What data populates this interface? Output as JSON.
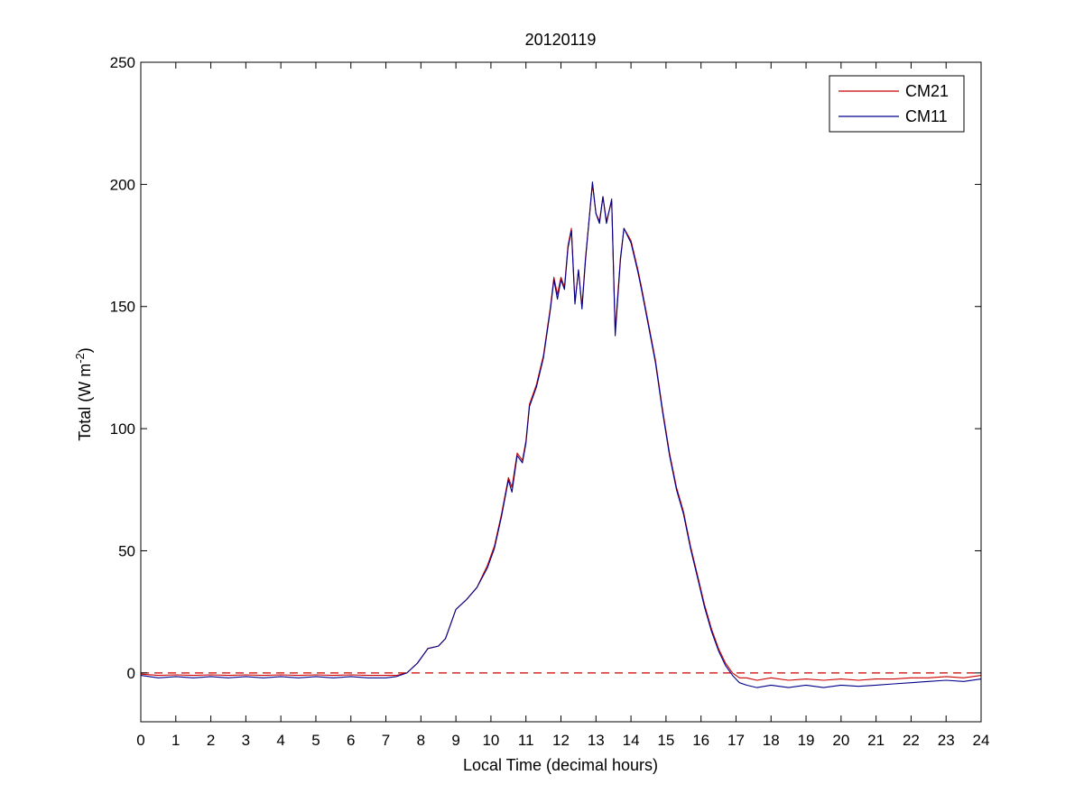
{
  "chart_data": {
    "type": "line",
    "title": "20120119",
    "xlabel": "Local Time (decimal hours)",
    "ylabel": {
      "prefix": "Total (W m",
      "superscript": "-2",
      "suffix": ")"
    },
    "xlim": [
      0,
      24
    ],
    "ylim": [
      -20,
      250
    ],
    "xticks": [
      "0",
      "1",
      "2",
      "3",
      "4",
      "5",
      "6",
      "7",
      "8",
      "9",
      "10",
      "11",
      "12",
      "13",
      "14",
      "15",
      "16",
      "17",
      "18",
      "19",
      "20",
      "21",
      "22",
      "23",
      "24"
    ],
    "yticks": [
      "0",
      "50",
      "100",
      "150",
      "200",
      "250"
    ],
    "grid": false,
    "legend_position": "top-right",
    "reference_line": {
      "y": 0,
      "style": "dashed",
      "color": "#cc0000"
    },
    "series": [
      {
        "name": "CM21",
        "color": "#cc0000",
        "points": [
          [
            0,
            -0.5
          ],
          [
            0.5,
            -1
          ],
          [
            1,
            -0.8
          ],
          [
            1.5,
            -1
          ],
          [
            2,
            -0.8
          ],
          [
            2.5,
            -1
          ],
          [
            3,
            -0.8
          ],
          [
            3.5,
            -1
          ],
          [
            4,
            -0.8
          ],
          [
            4.5,
            -1
          ],
          [
            5,
            -0.8
          ],
          [
            5.5,
            -1
          ],
          [
            6,
            -0.8
          ],
          [
            6.5,
            -1
          ],
          [
            7,
            -1
          ],
          [
            7.3,
            -1
          ],
          [
            7.6,
            0
          ],
          [
            7.9,
            4
          ],
          [
            8.2,
            10
          ],
          [
            8.5,
            11
          ],
          [
            8.7,
            14
          ],
          [
            9,
            26
          ],
          [
            9.3,
            30
          ],
          [
            9.6,
            35
          ],
          [
            9.9,
            44
          ],
          [
            10.1,
            52
          ],
          [
            10.3,
            65
          ],
          [
            10.5,
            80
          ],
          [
            10.6,
            76
          ],
          [
            10.75,
            90
          ],
          [
            10.9,
            87
          ],
          [
            11,
            95
          ],
          [
            11.1,
            110
          ],
          [
            11.3,
            118
          ],
          [
            11.5,
            130
          ],
          [
            11.7,
            150
          ],
          [
            11.8,
            162
          ],
          [
            11.9,
            155
          ],
          [
            12.0,
            162
          ],
          [
            12.1,
            158
          ],
          [
            12.2,
            175
          ],
          [
            12.3,
            182
          ],
          [
            12.4,
            152
          ],
          [
            12.5,
            165
          ],
          [
            12.6,
            150
          ],
          [
            12.7,
            170
          ],
          [
            12.9,
            200
          ],
          [
            13.0,
            188
          ],
          [
            13.1,
            185
          ],
          [
            13.2,
            195
          ],
          [
            13.3,
            185
          ],
          [
            13.45,
            193
          ],
          [
            13.55,
            140
          ],
          [
            13.7,
            170
          ],
          [
            13.8,
            182
          ],
          [
            14.0,
            177
          ],
          [
            14.2,
            165
          ],
          [
            14.3,
            158
          ],
          [
            14.5,
            143
          ],
          [
            14.7,
            128
          ],
          [
            14.9,
            108
          ],
          [
            15.1,
            90
          ],
          [
            15.3,
            76
          ],
          [
            15.5,
            66
          ],
          [
            15.7,
            52
          ],
          [
            15.9,
            40
          ],
          [
            16.1,
            28
          ],
          [
            16.3,
            18
          ],
          [
            16.5,
            10
          ],
          [
            16.7,
            4
          ],
          [
            16.9,
            0
          ],
          [
            17.1,
            -2
          ],
          [
            17.3,
            -2
          ],
          [
            17.6,
            -3
          ],
          [
            18,
            -2
          ],
          [
            18.5,
            -3
          ],
          [
            19,
            -2.5
          ],
          [
            19.5,
            -3
          ],
          [
            20,
            -2.5
          ],
          [
            20.5,
            -3
          ],
          [
            21,
            -2.5
          ],
          [
            21.5,
            -2.5
          ],
          [
            22,
            -2
          ],
          [
            22.5,
            -2
          ],
          [
            23,
            -1.5
          ],
          [
            23.5,
            -2
          ],
          [
            24,
            -1
          ]
        ]
      },
      {
        "name": "CM11",
        "color": "#00008b",
        "points": [
          [
            0,
            -1
          ],
          [
            0.5,
            -2
          ],
          [
            1,
            -1.5
          ],
          [
            1.5,
            -2
          ],
          [
            2,
            -1.5
          ],
          [
            2.5,
            -2
          ],
          [
            3,
            -1.5
          ],
          [
            3.5,
            -2
          ],
          [
            4,
            -1.5
          ],
          [
            4.5,
            -2
          ],
          [
            5,
            -1.5
          ],
          [
            5.5,
            -2
          ],
          [
            6,
            -1.5
          ],
          [
            6.5,
            -2
          ],
          [
            7,
            -2
          ],
          [
            7.3,
            -1.5
          ],
          [
            7.6,
            0
          ],
          [
            7.9,
            4
          ],
          [
            8.2,
            10
          ],
          [
            8.5,
            11
          ],
          [
            8.7,
            14
          ],
          [
            9,
            26
          ],
          [
            9.3,
            30
          ],
          [
            9.6,
            35
          ],
          [
            9.9,
            43
          ],
          [
            10.1,
            51
          ],
          [
            10.3,
            64
          ],
          [
            10.5,
            79
          ],
          [
            10.6,
            74
          ],
          [
            10.75,
            89
          ],
          [
            10.9,
            86
          ],
          [
            11,
            94
          ],
          [
            11.1,
            109
          ],
          [
            11.3,
            117
          ],
          [
            11.5,
            129
          ],
          [
            11.7,
            149
          ],
          [
            11.8,
            161
          ],
          [
            11.9,
            153
          ],
          [
            12.0,
            161
          ],
          [
            12.1,
            157
          ],
          [
            12.2,
            174
          ],
          [
            12.3,
            181
          ],
          [
            12.4,
            151
          ],
          [
            12.5,
            165
          ],
          [
            12.6,
            149
          ],
          [
            12.7,
            169
          ],
          [
            12.9,
            201
          ],
          [
            13.0,
            188
          ],
          [
            13.1,
            184
          ],
          [
            13.2,
            195
          ],
          [
            13.3,
            184
          ],
          [
            13.45,
            194
          ],
          [
            13.55,
            138
          ],
          [
            13.7,
            169
          ],
          [
            13.8,
            182
          ],
          [
            14.0,
            176
          ],
          [
            14.2,
            164
          ],
          [
            14.3,
            157
          ],
          [
            14.5,
            142
          ],
          [
            14.7,
            127
          ],
          [
            14.9,
            107
          ],
          [
            15.1,
            89
          ],
          [
            15.3,
            75
          ],
          [
            15.5,
            65
          ],
          [
            15.7,
            51
          ],
          [
            15.9,
            39
          ],
          [
            16.1,
            27
          ],
          [
            16.3,
            17
          ],
          [
            16.5,
            9
          ],
          [
            16.7,
            3
          ],
          [
            16.9,
            -1
          ],
          [
            17.1,
            -4
          ],
          [
            17.3,
            -5
          ],
          [
            17.6,
            -6
          ],
          [
            18,
            -5
          ],
          [
            18.5,
            -6
          ],
          [
            19,
            -5
          ],
          [
            19.5,
            -6
          ],
          [
            20,
            -5
          ],
          [
            20.5,
            -5.5
          ],
          [
            21,
            -5
          ],
          [
            21.5,
            -4.5
          ],
          [
            22,
            -4
          ],
          [
            22.5,
            -3.5
          ],
          [
            23,
            -3
          ],
          [
            23.5,
            -3.5
          ],
          [
            24,
            -2.5
          ]
        ]
      }
    ]
  }
}
